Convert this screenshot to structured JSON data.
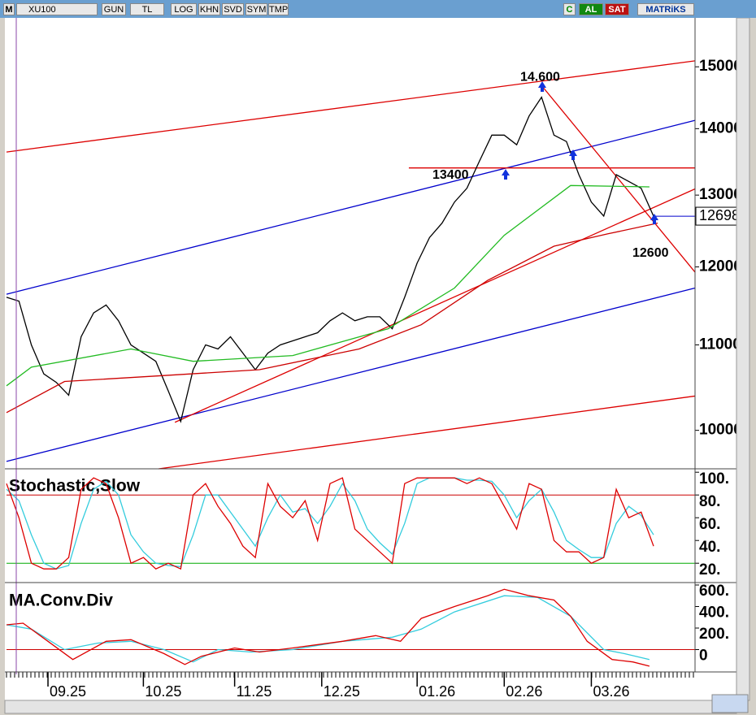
{
  "toolbar": {
    "logo": "M",
    "symbol": "XU100",
    "buttons": [
      "GUN",
      "TL",
      "LOG",
      "KHN",
      "SVD",
      "SYM",
      "TMP"
    ],
    "c_button": "C",
    "actions": [
      "AL",
      "SAT"
    ],
    "brand": "MATRiKS"
  },
  "chart_data": [
    {
      "type": "line",
      "log_scale": true,
      "xlim": [
        0,
        166
      ],
      "ylim": [
        9580,
        15870
      ],
      "yticks": [
        10000,
        11000,
        12000,
        13000,
        14000,
        15000
      ],
      "x": [
        0,
        3,
        6,
        9,
        12,
        15,
        18,
        21,
        24,
        27,
        30,
        33,
        36,
        39,
        42,
        45,
        48,
        51,
        54,
        57,
        60,
        63,
        66,
        69,
        72,
        75,
        78,
        81,
        84,
        87,
        90,
        93,
        96,
        99,
        102,
        105,
        108,
        111,
        114,
        117,
        120,
        123,
        126,
        129,
        132,
        135,
        138,
        141,
        144,
        147,
        150,
        153,
        156
      ],
      "series": [
        {
          "color": "#000000",
          "values": [
            11600,
            11550,
            11000,
            10650,
            10550,
            10400,
            11100,
            11400,
            11500,
            11300,
            11000,
            10900,
            10800,
            10450,
            10100,
            10700,
            11000,
            10950,
            11100,
            10900,
            10700,
            10900,
            11000,
            11050,
            11100,
            11150,
            11300,
            11400,
            11300,
            11350,
            11350,
            11200,
            11600,
            12050,
            12400,
            12600,
            12900,
            13100,
            13500,
            13900,
            13900,
            13750,
            14200,
            14500,
            13900,
            13800,
            13300,
            12900,
            12700,
            13300,
            13200,
            13100,
            12698
          ]
        },
        {
          "color": "#22bb22",
          "x": [
            0,
            6,
            30,
            45,
            69,
            92,
            108,
            120,
            136,
            155
          ],
          "values": [
            10510,
            10730,
            10950,
            10800,
            10870,
            11200,
            11720,
            12430,
            13140,
            13120
          ]
        },
        {
          "color": "#cc0000",
          "x": [
            0,
            14,
            38,
            61,
            85,
            100,
            116,
            132,
            145,
            157
          ],
          "values": [
            10200,
            10560,
            10630,
            10700,
            10950,
            11250,
            11820,
            12280,
            12450,
            12600
          ]
        }
      ],
      "trendlines": [
        {
          "color": "#dd0000",
          "x": [
            0,
            166
          ],
          "y": [
            13640,
            15100
          ]
        },
        {
          "color": "#0000cc",
          "x": [
            0,
            166
          ],
          "y": [
            11640,
            14130
          ]
        },
        {
          "color": "#0000cc",
          "x": [
            0,
            166
          ],
          "y": [
            9660,
            11720
          ]
        },
        {
          "color": "#dd0000",
          "x": [
            36.7,
            166
          ],
          "y": [
            9580,
            10390
          ]
        },
        {
          "color": "#dd0000",
          "x": [
            40.6,
            166
          ],
          "y": [
            10090,
            13090
          ]
        },
        {
          "color": "#dd0000",
          "x": [
            129,
            166
          ],
          "y": [
            14690,
            11930
          ]
        },
        {
          "color": "#dd0000",
          "x": [
            97,
            166
          ],
          "y": [
            13400,
            13400
          ]
        }
      ],
      "annotations": [
        {
          "label": "14.600",
          "value": 14600
        },
        {
          "label": "13400",
          "value": 13400
        },
        {
          "label": "12600",
          "value": 12600
        }
      ],
      "last_price": 12698
    },
    {
      "type": "line",
      "title": "Stochastic,Slow",
      "xlim": [
        0,
        166
      ],
      "ylim": [
        3,
        103
      ],
      "yticks": [
        {
          "value": 20,
          "label": "20."
        },
        {
          "value": 40,
          "label": "40."
        },
        {
          "value": 60,
          "label": "60."
        },
        {
          "value": 80,
          "label": "80."
        },
        {
          "value": 100,
          "label": "100."
        }
      ],
      "levels": [
        {
          "value": 80,
          "color": "#cc0000"
        },
        {
          "value": 20,
          "color": "#00aa00"
        }
      ],
      "x": [
        0,
        3,
        6,
        9,
        12,
        15,
        18,
        21,
        24,
        27,
        30,
        33,
        36,
        39,
        42,
        45,
        48,
        51,
        54,
        57,
        60,
        63,
        66,
        69,
        72,
        75,
        78,
        81,
        84,
        87,
        90,
        93,
        96,
        99,
        102,
        105,
        108,
        111,
        114,
        117,
        120,
        123,
        126,
        129,
        132,
        135,
        138,
        141,
        144,
        147,
        150,
        153,
        156
      ],
      "series": [
        {
          "color": "#33ccdd",
          "values": [
            85,
            75,
            45,
            20,
            15,
            18,
            55,
            85,
            92,
            80,
            45,
            30,
            20,
            18,
            17,
            45,
            80,
            80,
            65,
            50,
            35,
            60,
            80,
            65,
            68,
            55,
            70,
            90,
            75,
            50,
            38,
            28,
            55,
            90,
            95,
            95,
            95,
            93,
            93,
            92,
            80,
            60,
            75,
            85,
            65,
            40,
            32,
            25,
            25,
            55,
            70,
            62,
            45
          ]
        },
        {
          "color": "#dd0000",
          "values": [
            90,
            60,
            20,
            15,
            15,
            25,
            85,
            95,
            90,
            60,
            20,
            25,
            15,
            20,
            15,
            80,
            90,
            70,
            55,
            35,
            25,
            90,
            70,
            60,
            75,
            40,
            90,
            95,
            50,
            40,
            30,
            20,
            90,
            95,
            95,
            95,
            95,
            90,
            95,
            90,
            70,
            50,
            90,
            85,
            40,
            30,
            30,
            20,
            25,
            85,
            60,
            65,
            35
          ]
        }
      ]
    },
    {
      "type": "line",
      "title": "MA.Conv.Div",
      "xlim": [
        0,
        166
      ],
      "ylim": [
        -200,
        615
      ],
      "yticks": [
        0,
        {
          "value": 200,
          "label": "200."
        },
        {
          "value": 400,
          "label": "400."
        },
        {
          "value": 600,
          "label": "600."
        }
      ],
      "levels": [
        {
          "value": 0,
          "color": "#cc0000"
        }
      ],
      "xticks": [
        {
          "value": 10,
          "label": "09.25"
        },
        {
          "value": 33,
          "label": "10.25"
        },
        {
          "value": 55,
          "label": "11.25"
        },
        {
          "value": 76,
          "label": "12.25"
        },
        {
          "value": 99,
          "label": "01.26"
        },
        {
          "value": 120,
          "label": "02.26"
        },
        {
          "value": 141,
          "label": "03.26"
        }
      ],
      "series": [
        {
          "color": "#33ccdd",
          "x": [
            0,
            6,
            14,
            22,
            30,
            38,
            45,
            51,
            59,
            69,
            81,
            93,
            100,
            108,
            120,
            128,
            136,
            144,
            149,
            155
          ],
          "values": [
            230,
            190,
            0,
            60,
            77,
            0,
            -115,
            0,
            -23,
            0,
            77,
            115,
            190,
            350,
            500,
            485,
            310,
            0,
            -38,
            -92
          ]
        },
        {
          "color": "#dd0000",
          "x": [
            0,
            4,
            10,
            16,
            24,
            30,
            38,
            43,
            47,
            55,
            61,
            69,
            81,
            89,
            95,
            100,
            108,
            116,
            120,
            126,
            132,
            136,
            140,
            146,
            151,
            155
          ],
          "values": [
            230,
            245,
            77,
            -92,
            77,
            92,
            -38,
            -138,
            -62,
            15,
            -23,
            15,
            77,
            130,
            77,
            290,
            400,
            500,
            560,
            500,
            460,
            310,
            77,
            -92,
            -115,
            -154
          ]
        }
      ]
    }
  ]
}
